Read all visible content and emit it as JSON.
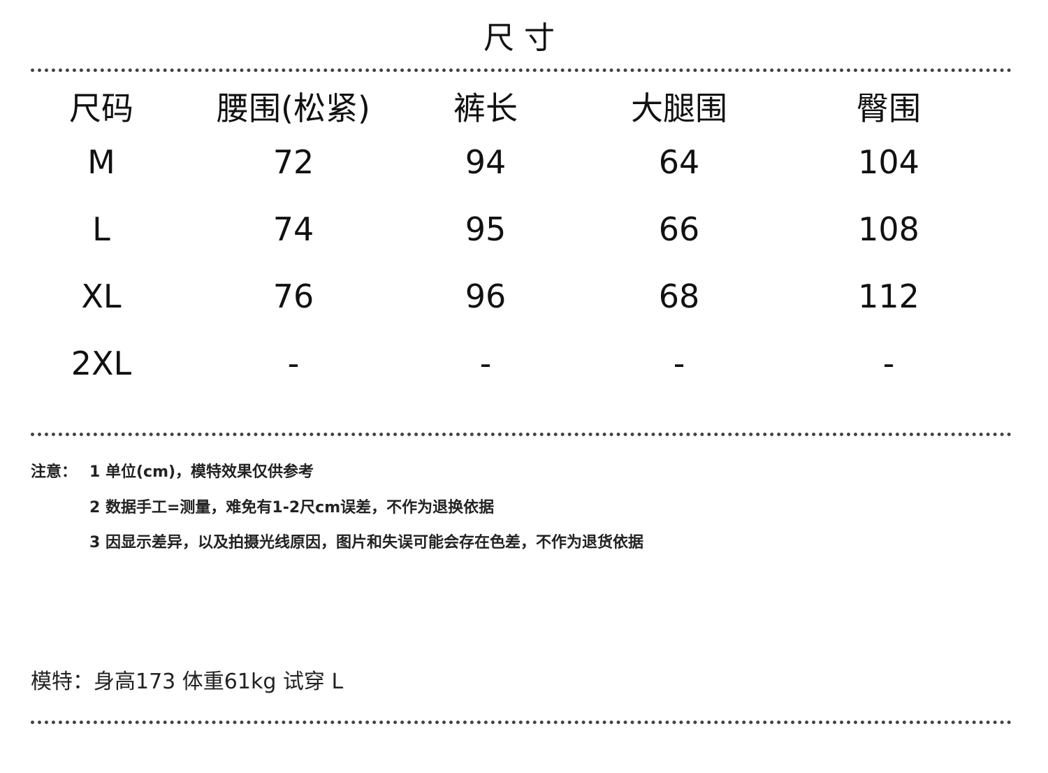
{
  "title": "尺寸",
  "table": {
    "headers": [
      "尺码",
      "腰围(松紧)",
      "裤长",
      "大腿围",
      "臀围"
    ],
    "rows": [
      [
        "M",
        "72",
        "94",
        "64",
        "104"
      ],
      [
        "L",
        "74",
        "95",
        "66",
        "108"
      ],
      [
        "XL",
        "76",
        "96",
        "68",
        "112"
      ],
      [
        "2XL",
        "-",
        "-",
        "-",
        "-"
      ]
    ]
  },
  "notes": {
    "label": "注意：",
    "items": [
      "1 单位(cm)，模特效果仅供参考",
      "2 数据手工=测量，难免有1-2尺cm误差，不作为退换依据",
      "3 因显示差异，以及拍摄光线原因，图片和失误可能会存在色差，不作为退货依据"
    ]
  },
  "model_info": "模特：身高173 体重61kg 试穿 L"
}
